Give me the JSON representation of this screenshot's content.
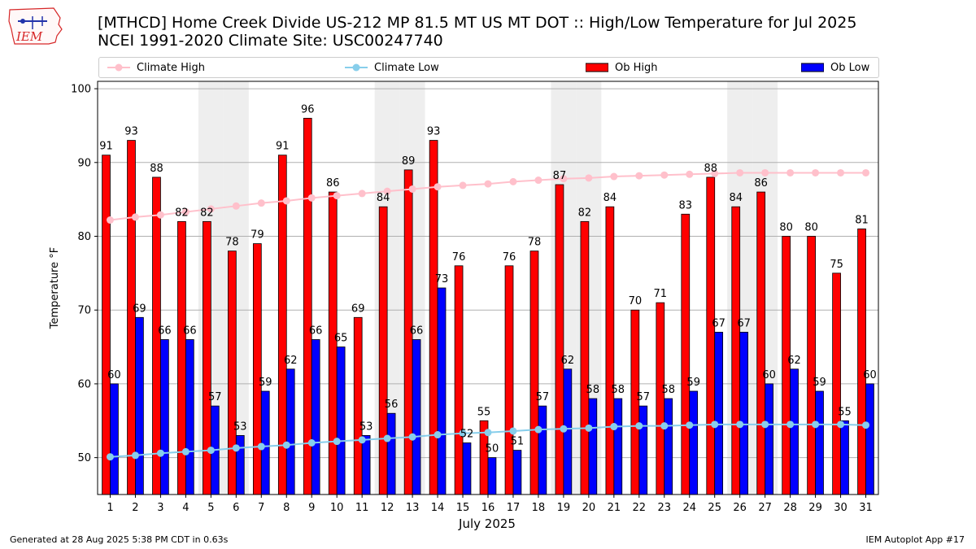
{
  "header": {
    "title_line1": "[MTHCD] Home Creek Divide US-212 MP 81.5 MT US MT DOT :: High/Low Temperature for Jul 2025",
    "title_line2": "NCEI 1991-2020 Climate Site: USC00247740",
    "logo_text": "IEM"
  },
  "legend": {
    "climate_high": "Climate High",
    "climate_low": "Climate Low",
    "ob_high": "Ob High",
    "ob_low": "Ob Low",
    "placement": "top"
  },
  "footer": {
    "left": "Generated at 28 Aug 2025 5:38 PM CDT in 0.63s",
    "right": "IEM Autoplot App #17"
  },
  "colors": {
    "ob_high": "#ff0000",
    "ob_low": "#0000ff",
    "climate_high": "#ffc0cb",
    "climate_low": "#87ceeb",
    "weekend_band": "#eeeeee"
  },
  "chart_data": {
    "type": "bar",
    "xlabel": "July 2025",
    "ylabel": "Temperature °F",
    "ylim": [
      45,
      101
    ],
    "yticks": [
      50,
      60,
      70,
      80,
      90,
      100
    ],
    "grid": true,
    "categories": [
      "1",
      "2",
      "3",
      "4",
      "5",
      "6",
      "7",
      "8",
      "9",
      "10",
      "11",
      "12",
      "13",
      "14",
      "15",
      "16",
      "17",
      "18",
      "19",
      "20",
      "21",
      "22",
      "23",
      "24",
      "25",
      "26",
      "27",
      "28",
      "29",
      "30",
      "31"
    ],
    "shaded_days": [
      5,
      6,
      12,
      13,
      19,
      20,
      26,
      27
    ],
    "series": [
      {
        "name": "Ob High",
        "kind": "bar",
        "values": [
          91,
          93,
          88,
          82,
          82,
          78,
          79,
          91,
          96,
          86,
          69,
          84,
          89,
          93,
          76,
          55,
          76,
          78,
          87,
          82,
          84,
          70,
          71,
          83,
          88,
          84,
          86,
          80,
          80,
          75,
          81
        ]
      },
      {
        "name": "Ob Low",
        "kind": "bar",
        "values": [
          60,
          69,
          66,
          66,
          57,
          53,
          59,
          62,
          66,
          65,
          53,
          56,
          66,
          73,
          52,
          50,
          51,
          57,
          62,
          58,
          58,
          57,
          58,
          59,
          67,
          67,
          60,
          62,
          59,
          55,
          60
        ]
      },
      {
        "name": "Climate High",
        "kind": "line",
        "values": [
          82.2,
          82.6,
          82.9,
          83.3,
          83.7,
          84.1,
          84.5,
          84.8,
          85.2,
          85.5,
          85.8,
          86.1,
          86.4,
          86.7,
          86.9,
          87.1,
          87.4,
          87.6,
          87.8,
          87.9,
          88.1,
          88.2,
          88.3,
          88.4,
          88.5,
          88.6,
          88.6,
          88.6,
          88.6,
          88.6,
          88.6
        ]
      },
      {
        "name": "Climate Low",
        "kind": "line",
        "values": [
          50.1,
          50.3,
          50.6,
          50.8,
          51.0,
          51.3,
          51.5,
          51.7,
          52.0,
          52.2,
          52.4,
          52.6,
          52.8,
          53.1,
          53.3,
          53.4,
          53.6,
          53.8,
          53.9,
          54.0,
          54.2,
          54.3,
          54.3,
          54.4,
          54.5,
          54.5,
          54.5,
          54.5,
          54.5,
          54.5,
          54.4
        ]
      }
    ]
  }
}
